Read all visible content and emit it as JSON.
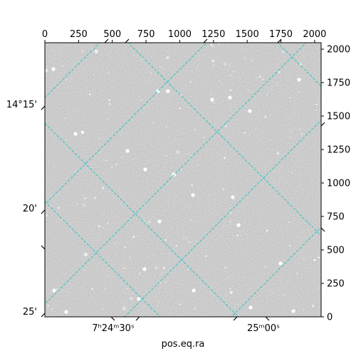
{
  "chart_data": {
    "type": "image",
    "title": "",
    "colormap": "gray",
    "pixel_axes": {
      "x_range": [
        0,
        2048
      ],
      "y_range": [
        0,
        2048
      ],
      "top_ticks": [
        0,
        250,
        500,
        750,
        1000,
        1250,
        1500,
        1750,
        2000
      ],
      "right_ticks": [
        0,
        250,
        500,
        750,
        1000,
        1250,
        1500,
        1750,
        2000
      ]
    },
    "world_axes": {
      "xlabel": "pos.eq.ra",
      "ylabel": "",
      "ra_ticks": [
        {
          "label": "7h24m30s",
          "text": "7ʰ24ᵐ30ˢ"
        },
        {
          "label": "25m00s",
          "text": "25ᵐ00ˢ"
        }
      ],
      "dec_ticks": [
        {
          "label": "14°15'",
          "text": "14°15'"
        },
        {
          "label": "20'",
          "text": "20'"
        },
        {
          "label": "25'",
          "text": "25'"
        }
      ]
    },
    "grid": {
      "enabled": true,
      "color": "#2ec4c4",
      "style": "dashed"
    },
    "annotations": []
  }
}
